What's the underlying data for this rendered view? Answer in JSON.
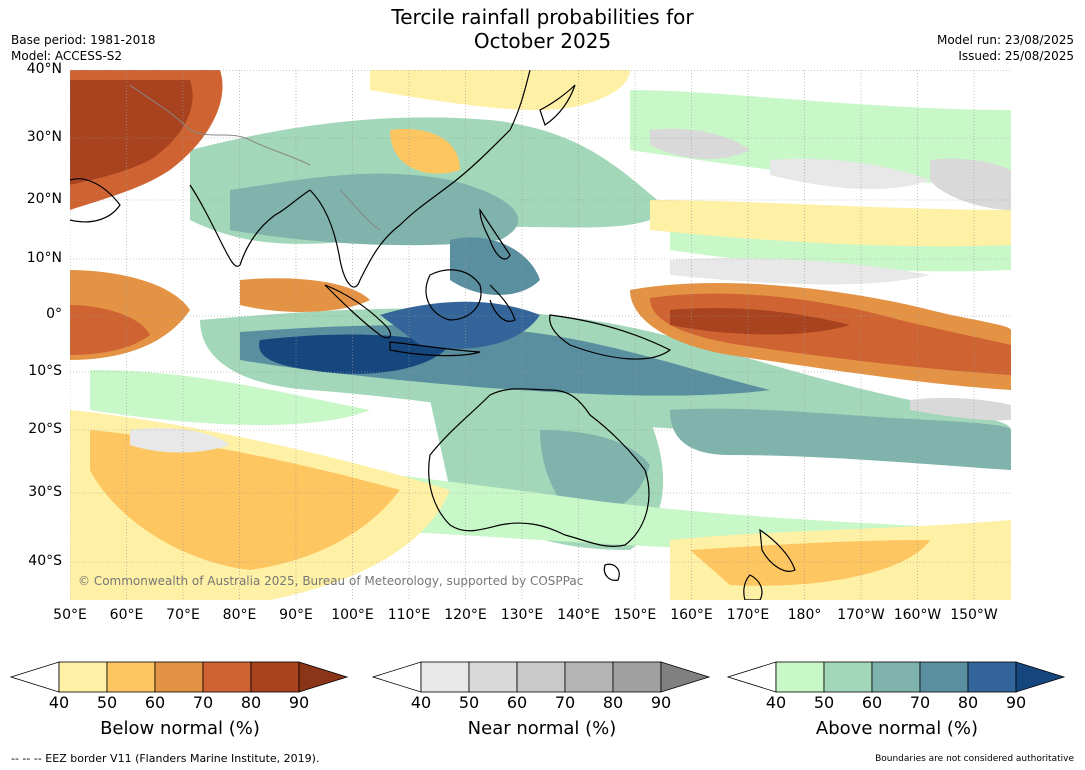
{
  "title": {
    "line1": "Tercile rainfall probabilities for",
    "line2": "October 2025"
  },
  "header": {
    "base_period": "Base period: 1981-2018",
    "model": "Model: ACCESS-S2",
    "model_run": "Model run: 23/08/2025",
    "issued": "Issued: 25/08/2025"
  },
  "map": {
    "lat_labels": [
      "40°N",
      "30°N",
      "20°N",
      "10°N",
      "0°",
      "10°S",
      "20°S",
      "30°S",
      "40°S"
    ],
    "lon_labels": [
      "50°E",
      "60°E",
      "70°E",
      "80°E",
      "90°E",
      "100°E",
      "110°E",
      "120°E",
      "130°E",
      "140°E",
      "150°E",
      "160°E",
      "170°E",
      "180°",
      "170°W",
      "160°W",
      "150°W"
    ],
    "copyright": "© Commonwealth of Australia 2025, Bureau of Meteorology, supported by COSPPac"
  },
  "colorbars": {
    "below": {
      "label": "Below normal (%)",
      "ticks": [
        "40",
        "50",
        "60",
        "70",
        "80",
        "90"
      ],
      "colors": [
        "#fef0a4",
        "#fdc661",
        "#e49244",
        "#cf6432",
        "#a8421f"
      ],
      "extend_color": "#8b3518"
    },
    "near": {
      "label": "Near normal (%)",
      "ticks": [
        "40",
        "50",
        "60",
        "70",
        "80",
        "90"
      ],
      "colors": [
        "#e8e8e8",
        "#d9d9d9",
        "#c9c9c9",
        "#b4b4b4",
        "#a0a0a0"
      ],
      "extend_color": "#808080"
    },
    "above": {
      "label": "Above normal (%)",
      "ticks": [
        "40",
        "50",
        "60",
        "70",
        "80",
        "90"
      ],
      "colors": [
        "#c8f7c8",
        "#a3d7b9",
        "#7fb3ac",
        "#5a8fa0",
        "#33659a"
      ],
      "extend_color": "#16467e"
    }
  },
  "footer": {
    "eez": "--  --  -- EEZ border V11 (Flanders Marine Institute, 2019).",
    "disclaimer": "Boundaries are not considered authoritative"
  }
}
